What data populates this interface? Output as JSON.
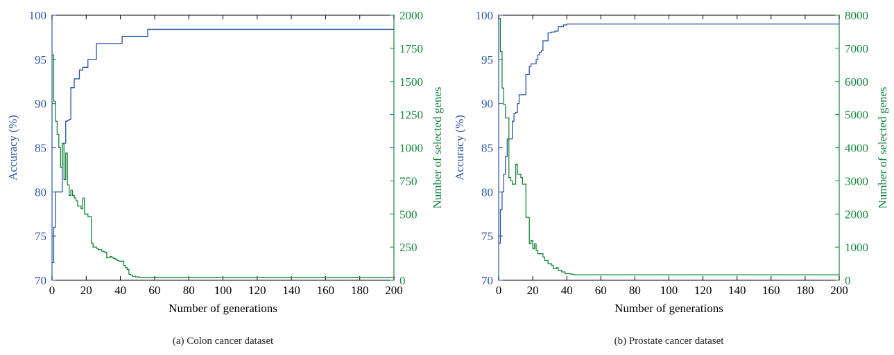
{
  "colors": {
    "accuracy": "#2a55a6",
    "genes": "#14853b",
    "axis": "#000000"
  },
  "chart_data": [
    {
      "type": "line",
      "caption": "(a) Colon cancer dataset",
      "xlabel": "Number of generations",
      "ylabel_left": "Accuracy (%)",
      "ylabel_right": "Number of selected genes",
      "xlim": [
        0,
        200
      ],
      "ylim_left": [
        70,
        100
      ],
      "ylim_right": [
        0,
        2000
      ],
      "x_ticks": [
        0,
        20,
        40,
        60,
        80,
        100,
        120,
        140,
        160,
        180,
        200
      ],
      "y_ticks_left": [
        70,
        75,
        80,
        85,
        90,
        95,
        100
      ],
      "y_ticks_right": [
        0,
        250,
        500,
        750,
        1000,
        1250,
        1500,
        1750,
        2000
      ],
      "grid": false,
      "step": true,
      "series": [
        {
          "axis": "left",
          "color_key": "accuracy",
          "x": [
            0,
            1,
            2,
            3,
            4,
            5,
            6,
            7,
            8,
            9,
            10,
            11,
            12,
            13,
            14,
            15,
            16,
            17,
            18,
            19,
            20,
            21,
            22,
            23,
            24,
            25,
            26,
            27,
            28,
            29,
            30,
            31,
            32,
            33,
            34,
            35,
            36,
            37,
            38,
            39,
            40,
            41,
            42,
            43,
            44,
            45,
            46,
            47,
            48,
            49,
            50,
            51,
            52,
            53,
            54,
            55,
            56,
            57,
            58,
            200
          ],
          "y": [
            72.0,
            76.0,
            80.0,
            80.0,
            80.0,
            80.0,
            85.5,
            85.5,
            88.0,
            88.1,
            88.2,
            91.8,
            91.8,
            92.8,
            92.8,
            92.8,
            93.8,
            93.8,
            94.1,
            94.1,
            94.1,
            95.0,
            95.0,
            95.0,
            95.0,
            95.0,
            96.8,
            96.8,
            96.8,
            96.8,
            96.8,
            96.8,
            96.8,
            96.8,
            96.8,
            96.8,
            96.8,
            96.8,
            96.8,
            96.8,
            96.8,
            97.6,
            97.6,
            97.6,
            97.6,
            97.6,
            97.6,
            97.6,
            97.6,
            97.6,
            97.6,
            97.6,
            97.6,
            97.6,
            97.6,
            97.6,
            98.4,
            98.4,
            98.4,
            98.4
          ]
        },
        {
          "axis": "right",
          "color_key": "genes",
          "x": [
            0,
            1,
            2,
            3,
            4,
            5,
            6,
            7,
            8,
            9,
            10,
            11,
            12,
            13,
            14,
            15,
            16,
            17,
            18,
            19,
            20,
            21,
            22,
            23,
            24,
            25,
            26,
            27,
            28,
            29,
            30,
            31,
            32,
            33,
            34,
            35,
            36,
            37,
            38,
            39,
            40,
            41,
            42,
            43,
            44,
            45,
            46,
            47,
            48,
            49,
            50,
            51,
            52,
            53,
            54,
            55,
            56,
            57,
            58,
            200
          ],
          "y": [
            1700,
            1350,
            1200,
            1100,
            1000,
            850,
            1030,
            760,
            960,
            720,
            640,
            680,
            640,
            620,
            600,
            560,
            560,
            540,
            620,
            500,
            500,
            480,
            480,
            280,
            250,
            250,
            240,
            230,
            230,
            220,
            215,
            210,
            170,
            170,
            180,
            170,
            165,
            160,
            150,
            145,
            140,
            145,
            110,
            95,
            80,
            45,
            40,
            30,
            30,
            25,
            25,
            20,
            20,
            20,
            20,
            20,
            20,
            20,
            20,
            20
          ]
        }
      ]
    },
    {
      "type": "line",
      "caption": "(b) Prostate cancer dataset",
      "xlabel": "Number of generations",
      "ylabel_left": "Accuracy (%)",
      "ylabel_right": "Number of selected genes",
      "xlim": [
        0,
        200
      ],
      "ylim_left": [
        70,
        100
      ],
      "ylim_right": [
        0,
        8000
      ],
      "x_ticks": [
        0,
        20,
        40,
        60,
        80,
        100,
        120,
        140,
        160,
        180,
        200
      ],
      "y_ticks_left": [
        70,
        75,
        80,
        85,
        90,
        95,
        100
      ],
      "y_ticks_right": [
        0,
        1000,
        2000,
        3000,
        4000,
        5000,
        6000,
        7000,
        8000
      ],
      "grid": false,
      "step": true,
      "series": [
        {
          "axis": "left",
          "color_key": "accuracy",
          "x": [
            0,
            1,
            2,
            3,
            4,
            5,
            6,
            7,
            8,
            9,
            10,
            11,
            12,
            13,
            14,
            15,
            16,
            17,
            18,
            19,
            20,
            21,
            22,
            23,
            24,
            25,
            26,
            27,
            28,
            29,
            30,
            31,
            32,
            33,
            34,
            35,
            36,
            37,
            38,
            39,
            40,
            41,
            200
          ],
          "y": [
            74.2,
            78.0,
            80.0,
            82.0,
            84.0,
            86.0,
            86.0,
            86.0,
            88.0,
            88.9,
            89.0,
            90.0,
            91.0,
            91.0,
            91.0,
            91.0,
            93.3,
            93.3,
            94.2,
            94.5,
            94.5,
            94.5,
            95.0,
            95.5,
            95.8,
            96.0,
            97.1,
            97.1,
            97.1,
            98.0,
            98.0,
            98.1,
            98.1,
            98.2,
            98.2,
            98.7,
            98.7,
            98.7,
            98.9,
            98.9,
            99.0,
            99.0,
            99.0
          ]
        },
        {
          "axis": "right",
          "color_key": "genes",
          "x": [
            0,
            1,
            2,
            3,
            4,
            5,
            6,
            7,
            8,
            9,
            10,
            11,
            12,
            13,
            14,
            15,
            16,
            17,
            18,
            19,
            20,
            21,
            22,
            23,
            24,
            25,
            26,
            27,
            28,
            29,
            30,
            31,
            32,
            33,
            34,
            35,
            36,
            37,
            38,
            39,
            40,
            41,
            42,
            43,
            44,
            45,
            46,
            47,
            48,
            200
          ],
          "y": [
            7900,
            6900,
            5800,
            5300,
            4900,
            4900,
            3100,
            3000,
            2900,
            2900,
            3500,
            3200,
            3200,
            3100,
            2900,
            2900,
            1900,
            1900,
            1100,
            1200,
            950,
            1100,
            900,
            800,
            800,
            800,
            700,
            600,
            600,
            500,
            500,
            450,
            350,
            350,
            380,
            300,
            300,
            250,
            250,
            200,
            200,
            200,
            190,
            180,
            170,
            165,
            165,
            165,
            165,
            165
          ]
        }
      ]
    }
  ]
}
